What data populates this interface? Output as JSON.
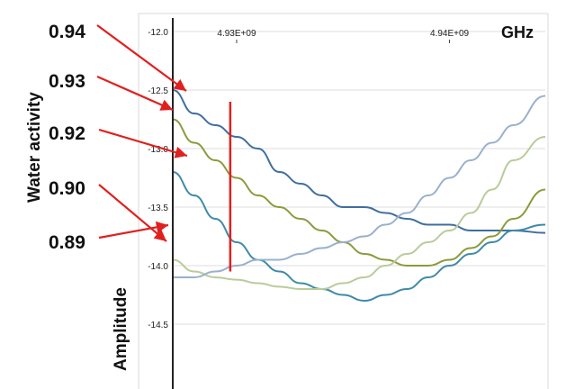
{
  "chart_data": {
    "type": "line",
    "ylabel": "Amplitude",
    "xunit": "GHz",
    "side_title": "Water activity",
    "x_ticks": [
      {
        "value": 4930000000.0,
        "label": "4.93E+09"
      },
      {
        "value": 4940000000.0,
        "label": "4.94E+09"
      }
    ],
    "xlim": [
      4927000000.0,
      4944500000.0
    ],
    "y_ticks": [
      {
        "value": -12.0,
        "label": "-12.0"
      },
      {
        "value": -12.5,
        "label": "-12.5"
      },
      {
        "value": -13.0,
        "label": "-13.0"
      },
      {
        "value": -13.5,
        "label": "-13.5"
      },
      {
        "value": -14.0,
        "label": "-14.0"
      },
      {
        "value": -14.5,
        "label": "-14.5"
      }
    ],
    "ylim": [
      -12.0,
      -15.0
    ],
    "grid": true,
    "marker_x": 4929700000.0,
    "marker_y_range": [
      -12.6,
      -14.05
    ],
    "series": [
      {
        "name": "0.94",
        "color": "#3f6e9e",
        "x": [
          4927000000.0,
          4928000000.0,
          4929000000.0,
          4930000000.0,
          4931000000.0,
          4932000000.0,
          4933000000.0,
          4934000000.0,
          4935000000.0,
          4936000000.0,
          4937000000.0,
          4938000000.0,
          4939000000.0,
          4940000000.0,
          4941000000.0,
          4942000000.0,
          4943000000.0,
          4944500000.0
        ],
        "values": [
          -12.5,
          -12.7,
          -12.8,
          -12.9,
          -13.0,
          -13.2,
          -13.3,
          -13.4,
          -13.5,
          -13.5,
          -13.55,
          -13.6,
          -13.65,
          -13.65,
          -13.7,
          -13.7,
          -13.7,
          -13.72
        ]
      },
      {
        "name": "0.93",
        "color": "#8c9a3a",
        "x": [
          4927000000.0,
          4928000000.0,
          4929000000.0,
          4930000000.0,
          4931000000.0,
          4932000000.0,
          4933000000.0,
          4934000000.0,
          4935000000.0,
          4936000000.0,
          4937000000.0,
          4938000000.0,
          4939000000.0,
          4940000000.0,
          4941000000.0,
          4942000000.0,
          4943000000.0,
          4944500000.0
        ],
        "values": [
          -12.75,
          -12.95,
          -13.1,
          -13.25,
          -13.4,
          -13.5,
          -13.6,
          -13.7,
          -13.8,
          -13.9,
          -13.95,
          -14.0,
          -14.0,
          -13.95,
          -13.85,
          -13.75,
          -13.6,
          -13.35
        ]
      },
      {
        "name": "0.92",
        "color": "#3e8aa8",
        "x": [
          4927000000.0,
          4928000000.0,
          4929000000.0,
          4930000000.0,
          4931000000.0,
          4932000000.0,
          4933000000.0,
          4934000000.0,
          4935000000.0,
          4936000000.0,
          4937000000.0,
          4938000000.0,
          4939000000.0,
          4940000000.0,
          4941000000.0,
          4942000000.0,
          4943000000.0,
          4944500000.0
        ],
        "values": [
          -13.2,
          -13.4,
          -13.6,
          -13.8,
          -13.95,
          -14.05,
          -14.15,
          -14.2,
          -14.25,
          -14.3,
          -14.25,
          -14.2,
          -14.1,
          -14.0,
          -13.9,
          -13.8,
          -13.7,
          -13.65
        ]
      },
      {
        "name": "0.90",
        "color": "#b8cc9a",
        "x": [
          4927000000.0,
          4928000000.0,
          4929000000.0,
          4930000000.0,
          4931000000.0,
          4932000000.0,
          4933000000.0,
          4934000000.0,
          4935000000.0,
          4936000000.0,
          4937000000.0,
          4938000000.0,
          4939000000.0,
          4940000000.0,
          4941000000.0,
          4942000000.0,
          4943000000.0,
          4944500000.0
        ],
        "values": [
          -13.95,
          -14.05,
          -14.1,
          -14.12,
          -14.15,
          -14.18,
          -14.2,
          -14.2,
          -14.15,
          -14.1,
          -14.0,
          -13.9,
          -13.8,
          -13.7,
          -13.55,
          -13.35,
          -13.1,
          -12.9
        ]
      },
      {
        "name": "0.89",
        "color": "#9ab0cc",
        "x": [
          4927000000.0,
          4928000000.0,
          4929000000.0,
          4930000000.0,
          4931000000.0,
          4932000000.0,
          4933000000.0,
          4934000000.0,
          4935000000.0,
          4936000000.0,
          4937000000.0,
          4938000000.0,
          4939000000.0,
          4940000000.0,
          4941000000.0,
          4942000000.0,
          4943000000.0,
          4944500000.0
        ],
        "values": [
          -14.1,
          -14.1,
          -14.05,
          -14.0,
          -13.95,
          -13.95,
          -13.9,
          -13.85,
          -13.8,
          -13.75,
          -13.65,
          -13.55,
          -13.4,
          -13.25,
          -13.1,
          -12.95,
          -12.8,
          -12.55
        ]
      }
    ]
  }
}
